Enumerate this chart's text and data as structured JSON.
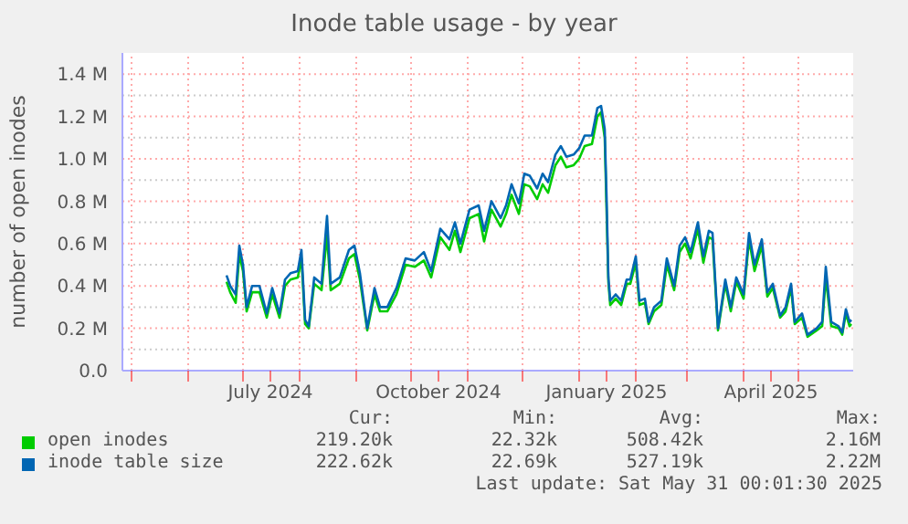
{
  "chart_data": {
    "type": "line",
    "title": "Inode table usage - by year",
    "ylabel": "number of open inodes",
    "x": [
      "2024-06-22",
      "2024-06-24",
      "2024-06-27",
      "2024-06-29",
      "2024-07-01",
      "2024-07-03",
      "2024-07-06",
      "2024-07-10",
      "2024-07-14",
      "2024-07-17",
      "2024-07-21",
      "2024-07-24",
      "2024-07-27",
      "2024-07-31",
      "2024-08-02",
      "2024-08-04",
      "2024-08-06",
      "2024-08-09",
      "2024-08-13",
      "2024-08-16",
      "2024-08-18",
      "2024-08-23",
      "2024-08-28",
      "2024-08-31",
      "2024-09-03",
      "2024-09-07",
      "2024-09-11",
      "2024-09-14",
      "2024-09-18",
      "2024-09-23",
      "2024-09-28",
      "2024-10-03",
      "2024-10-08",
      "2024-10-12",
      "2024-10-17",
      "2024-10-22",
      "2024-10-25",
      "2024-10-28",
      "2024-11-02",
      "2024-11-07",
      "2024-11-10",
      "2024-11-14",
      "2024-11-19",
      "2024-11-22",
      "2024-11-25",
      "2024-11-29",
      "2024-12-02",
      "2024-12-05",
      "2024-12-09",
      "2024-12-12",
      "2024-12-15",
      "2024-12-19",
      "2024-12-22",
      "2024-12-25",
      "2024-12-29",
      "2025-01-01",
      "2025-01-04",
      "2025-01-08",
      "2025-01-11",
      "2025-01-13",
      "2025-01-15",
      "2025-01-16",
      "2025-01-17",
      "2025-01-18",
      "2025-01-21",
      "2025-01-24",
      "2025-01-27",
      "2025-01-29",
      "2025-02-01",
      "2025-02-03",
      "2025-02-06",
      "2025-02-08",
      "2025-02-11",
      "2025-02-15",
      "2025-02-18",
      "2025-02-22",
      "2025-02-25",
      "2025-02-28",
      "2025-03-03",
      "2025-03-07",
      "2025-03-10",
      "2025-03-13",
      "2025-03-15",
      "2025-03-18",
      "2025-03-22",
      "2025-03-25",
      "2025-03-28",
      "2025-04-01",
      "2025-04-04",
      "2025-04-07",
      "2025-04-11",
      "2025-04-14",
      "2025-04-17",
      "2025-04-21",
      "2025-04-24",
      "2025-04-27",
      "2025-04-29",
      "2025-05-03",
      "2025-05-06",
      "2025-05-11",
      "2025-05-14",
      "2025-05-16",
      "2025-05-19",
      "2025-05-23",
      "2025-05-25",
      "2025-05-27",
      "2025-05-29",
      "2025-05-30"
    ],
    "series": [
      {
        "name": "open inodes",
        "color": "#00cc00",
        "values": [
          0.42,
          0.37,
          0.32,
          0.55,
          0.47,
          0.28,
          0.37,
          0.37,
          0.25,
          0.36,
          0.25,
          0.4,
          0.43,
          0.44,
          0.53,
          0.22,
          0.2,
          0.41,
          0.38,
          0.64,
          0.38,
          0.41,
          0.53,
          0.55,
          0.43,
          0.19,
          0.36,
          0.28,
          0.28,
          0.36,
          0.5,
          0.49,
          0.52,
          0.44,
          0.63,
          0.57,
          0.66,
          0.56,
          0.72,
          0.74,
          0.61,
          0.76,
          0.68,
          0.74,
          0.83,
          0.74,
          0.88,
          0.87,
          0.81,
          0.88,
          0.84,
          0.97,
          1.01,
          0.96,
          0.97,
          1.0,
          1.06,
          1.07,
          1.2,
          1.22,
          1.1,
          0.76,
          0.42,
          0.31,
          0.34,
          0.31,
          0.41,
          0.41,
          0.51,
          0.31,
          0.32,
          0.22,
          0.28,
          0.31,
          0.5,
          0.38,
          0.56,
          0.6,
          0.53,
          0.67,
          0.51,
          0.63,
          0.62,
          0.19,
          0.41,
          0.28,
          0.42,
          0.34,
          0.62,
          0.47,
          0.59,
          0.35,
          0.39,
          0.25,
          0.28,
          0.39,
          0.22,
          0.25,
          0.16,
          0.19,
          0.21,
          0.44,
          0.21,
          0.2,
          0.17,
          0.27,
          0.21,
          0.22
        ]
      },
      {
        "name": "inode table size",
        "color": "#0066b3",
        "values": [
          0.45,
          0.4,
          0.36,
          0.59,
          0.5,
          0.3,
          0.4,
          0.4,
          0.27,
          0.39,
          0.27,
          0.43,
          0.46,
          0.47,
          0.57,
          0.24,
          0.21,
          0.44,
          0.41,
          0.73,
          0.41,
          0.44,
          0.57,
          0.59,
          0.46,
          0.2,
          0.39,
          0.3,
          0.3,
          0.39,
          0.53,
          0.52,
          0.56,
          0.47,
          0.67,
          0.62,
          0.7,
          0.6,
          0.76,
          0.78,
          0.66,
          0.8,
          0.72,
          0.78,
          0.88,
          0.79,
          0.93,
          0.92,
          0.86,
          0.93,
          0.89,
          1.02,
          1.06,
          1.01,
          1.02,
          1.05,
          1.11,
          1.11,
          1.24,
          1.25,
          1.14,
          0.82,
          0.44,
          0.33,
          0.36,
          0.33,
          0.43,
          0.43,
          0.54,
          0.33,
          0.34,
          0.23,
          0.3,
          0.33,
          0.53,
          0.4,
          0.59,
          0.63,
          0.56,
          0.7,
          0.54,
          0.66,
          0.65,
          0.2,
          0.43,
          0.3,
          0.44,
          0.36,
          0.65,
          0.5,
          0.62,
          0.37,
          0.41,
          0.26,
          0.3,
          0.41,
          0.23,
          0.27,
          0.17,
          0.2,
          0.23,
          0.49,
          0.23,
          0.21,
          0.18,
          0.29,
          0.23,
          0.24
        ]
      }
    ],
    "xlim": [
      "2024-04-26",
      "2025-05-31"
    ],
    "xticks": [
      {
        "value": "2024-05-01",
        "label": null
      },
      {
        "value": "2024-06-01",
        "label": null
      },
      {
        "value": "2024-07-01",
        "label": null
      },
      {
        "value": "2024-07-16",
        "label": "July 2024"
      },
      {
        "value": "2024-08-01",
        "label": null
      },
      {
        "value": "2024-09-01",
        "label": null
      },
      {
        "value": "2024-10-01",
        "label": null
      },
      {
        "value": "2024-10-16",
        "label": "October 2024"
      },
      {
        "value": "2024-11-01",
        "label": null
      },
      {
        "value": "2024-12-01",
        "label": null
      },
      {
        "value": "2025-01-01",
        "label": null
      },
      {
        "value": "2025-01-16",
        "label": "January 2025"
      },
      {
        "value": "2025-02-01",
        "label": null
      },
      {
        "value": "2025-03-01",
        "label": null
      },
      {
        "value": "2025-04-01",
        "label": null
      },
      {
        "value": "2025-04-16",
        "label": "April 2025"
      },
      {
        "value": "2025-05-01",
        "label": null
      }
    ],
    "ylim": [
      0,
      1.5
    ],
    "yticks": [
      {
        "value": 0,
        "label": "0.0"
      },
      {
        "value": 0.1,
        "label": null
      },
      {
        "value": 0.2,
        "label": "0.2 M"
      },
      {
        "value": 0.3,
        "label": null
      },
      {
        "value": 0.4,
        "label": "0.4 M"
      },
      {
        "value": 0.5,
        "label": null
      },
      {
        "value": 0.6,
        "label": "0.6 M"
      },
      {
        "value": 0.7,
        "label": null
      },
      {
        "value": 0.8,
        "label": "0.8 M"
      },
      {
        "value": 0.9,
        "label": null
      },
      {
        "value": 1.0,
        "label": "1.0 M"
      },
      {
        "value": 1.1,
        "label": null
      },
      {
        "value": 1.2,
        "label": "1.2 M"
      },
      {
        "value": 1.3,
        "label": null
      },
      {
        "value": 1.4,
        "label": "1.4 M"
      }
    ],
    "grid": true,
    "legend": "bottom",
    "marker": "none",
    "line_style": "solid",
    "annotations": [
      "Cur:",
      "Min:",
      "Avg:",
      "Max:",
      "219.20k",
      "22.32k",
      "508.42k",
      "2.16M",
      "222.62k",
      "22.69k",
      "527.19k",
      "2.22M",
      "Last update: Sat May 31 00:01:30 2025"
    ]
  }
}
